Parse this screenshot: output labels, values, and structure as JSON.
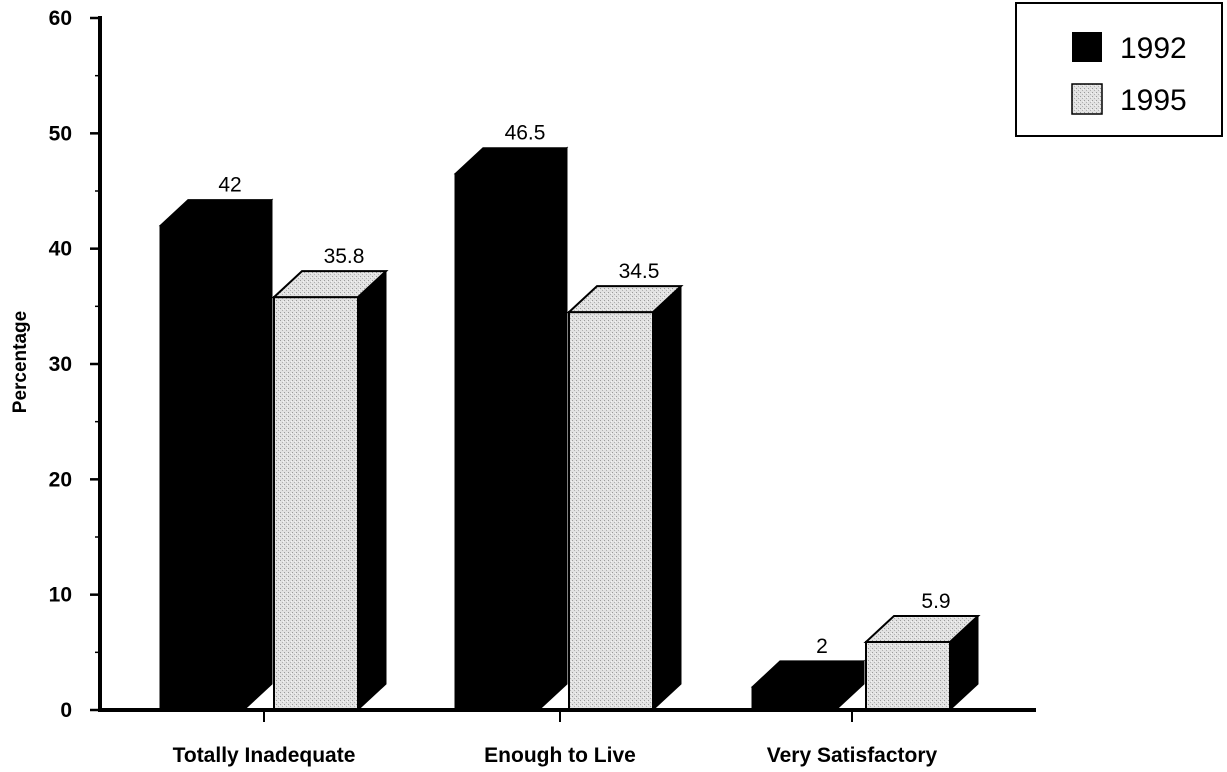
{
  "chart_data": {
    "type": "bar",
    "title": "",
    "xlabel": "",
    "ylabel": "Percentage",
    "ylim": [
      0,
      60
    ],
    "yticks": [
      "0",
      "10",
      "20",
      "30",
      "40",
      "50",
      "60"
    ],
    "categories": [
      "Totally Inadequate",
      "Enough to Live",
      "Very Satisfactory"
    ],
    "series": [
      {
        "name": "1992",
        "values": [
          42,
          46.5,
          2
        ],
        "labels": [
          "42",
          "46.5",
          "2"
        ],
        "color": "#000000"
      },
      {
        "name": "1995",
        "values": [
          35.8,
          34.5,
          5.9
        ],
        "labels": [
          "35.8",
          "34.5",
          "5.9"
        ],
        "color": "#d6d6d6"
      }
    ],
    "legend_position": "top-right",
    "grid": false,
    "style": "3d"
  }
}
